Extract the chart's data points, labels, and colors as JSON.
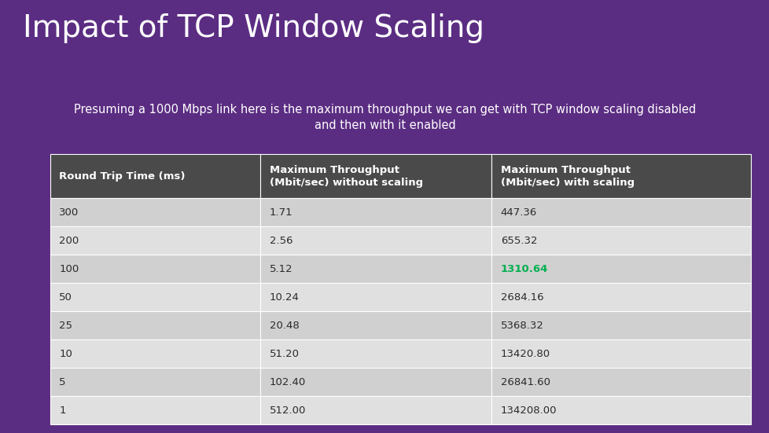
{
  "title": "Impact of TCP Window Scaling",
  "subtitle_line1": "Presuming a 1000 Mbps link here is the maximum throughput we can get with TCP window scaling disabled",
  "subtitle_line2": "and then with it enabled",
  "bg_color": "#5b2d82",
  "header_bg": "#4a4a4a",
  "header_text_color": "#ffffff",
  "row_color_odd": "#d0d0d0",
  "row_color_even": "#e0e0e0",
  "highlight_color": "#00b050",
  "col_headers": [
    "Round Trip Time (ms)",
    "Maximum Throughput\n(Mbit/sec) without scaling",
    "Maximum Throughput\n(Mbit/sec) with scaling"
  ],
  "rows": [
    [
      "300",
      "1.71",
      "447.36"
    ],
    [
      "200",
      "2.56",
      "655.32"
    ],
    [
      "100",
      "5.12",
      "1310.64"
    ],
    [
      "50",
      "10.24",
      "2684.16"
    ],
    [
      "25",
      "20.48",
      "5368.32"
    ],
    [
      "10",
      "51.20",
      "13420.80"
    ],
    [
      "5",
      "102.40",
      "26841.60"
    ],
    [
      "1",
      "512.00",
      "134208.00"
    ]
  ],
  "highlight_row": 2,
  "highlight_col": 2,
  "title_fontsize": 28,
  "subtitle_fontsize": 10.5,
  "header_fontsize": 9.5,
  "cell_fontsize": 9.5
}
